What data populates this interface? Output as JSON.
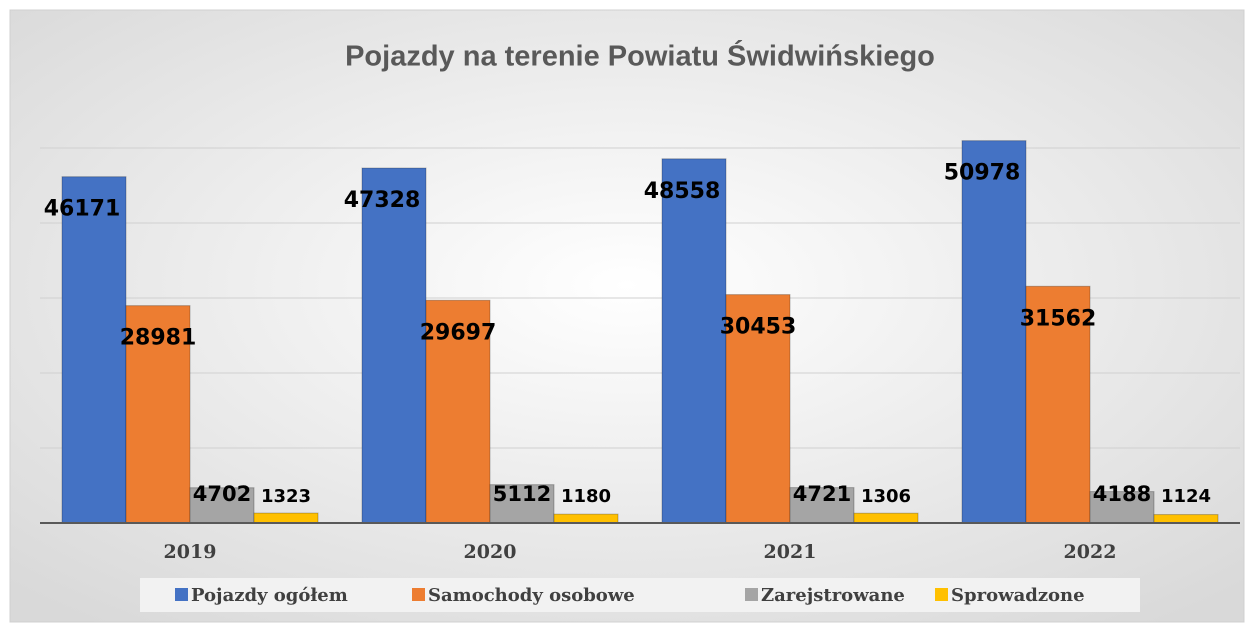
{
  "chart_data": {
    "type": "bar",
    "title": "Pojazdy na terenie Powiatu Świdwińskiego",
    "categories": [
      "2019",
      "2020",
      "2021",
      "2022"
    ],
    "series": [
      {
        "name": "Pojazdy ogółem",
        "color": "#4472c4",
        "values": [
          46171,
          47328,
          48558,
          50978
        ]
      },
      {
        "name": "Samochody osobowe",
        "color": "#ed7d31",
        "values": [
          28981,
          29697,
          30453,
          31562
        ]
      },
      {
        "name": "Zarejstrowane",
        "color": "#a5a5a5",
        "values": [
          4702,
          5112,
          4721,
          4188
        ]
      },
      {
        "name": "Sprowadzone",
        "color": "#ffc000",
        "values": [
          1323,
          1180,
          1306,
          1124
        ]
      }
    ],
    "ylim": [
      0,
      60000
    ],
    "yticks": [
      0,
      10000,
      20000,
      30000,
      40000,
      50000
    ],
    "grid": true,
    "legend": "bottom"
  }
}
